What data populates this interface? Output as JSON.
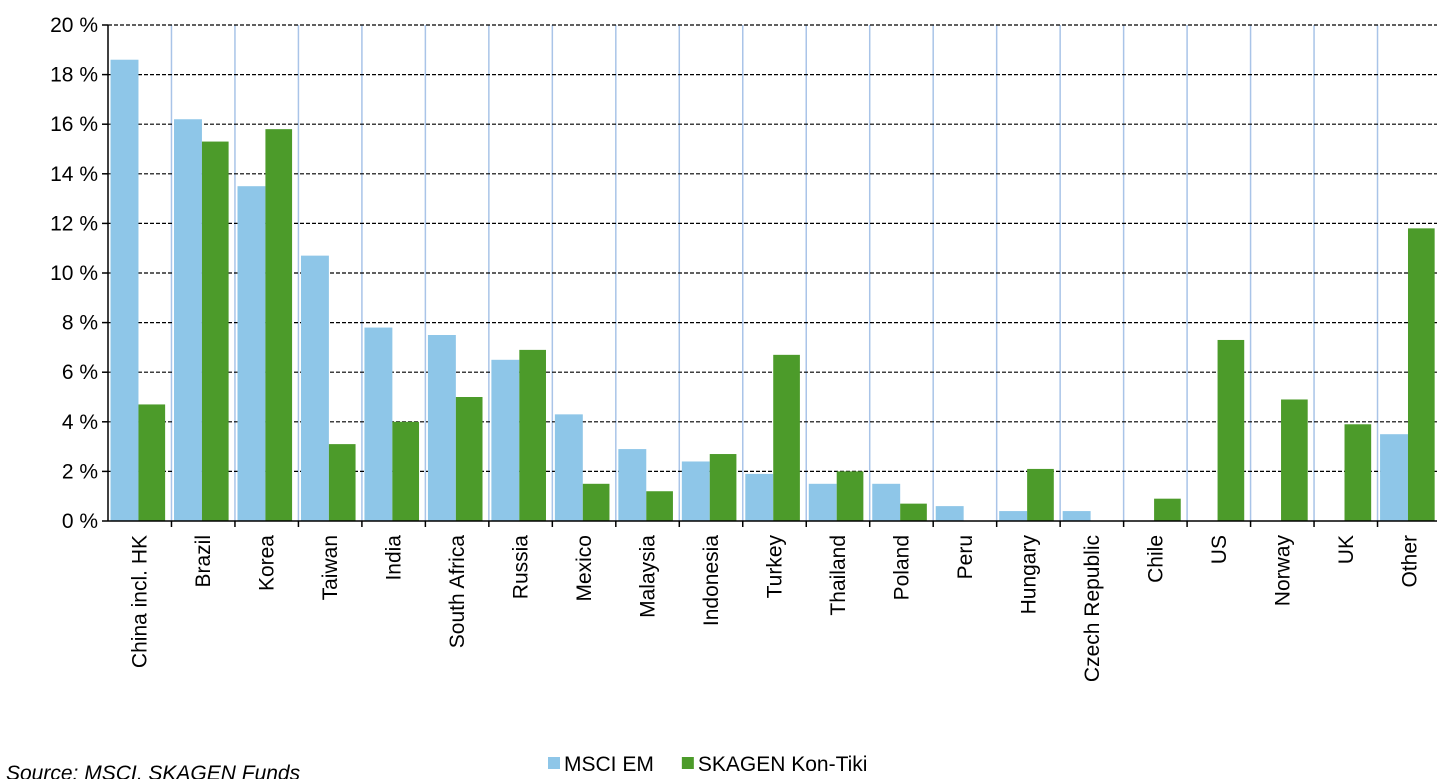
{
  "chart_data": {
    "type": "bar",
    "categories": [
      "China incl. HK",
      "Brazil",
      "Korea",
      "Taiwan",
      "India",
      "South Africa",
      "Russia",
      "Mexico",
      "Malaysia",
      "Indonesia",
      "Turkey",
      "Thailand",
      "Poland",
      "Peru",
      "Hungary",
      "Czech Republic",
      "Chile",
      "US",
      "Norway",
      "UK",
      "Other"
    ],
    "series": [
      {
        "name": "MSCI EM",
        "color": "#8ec6e8",
        "values": [
          18.6,
          16.2,
          13.5,
          10.7,
          7.8,
          7.5,
          6.5,
          4.3,
          2.9,
          2.4,
          1.9,
          1.5,
          1.5,
          0.6,
          0.4,
          0.4,
          0,
          0,
          0,
          0,
          3.5
        ]
      },
      {
        "name": "SKAGEN Kon-Tiki",
        "color": "#4c9b2a",
        "values": [
          4.7,
          15.3,
          15.8,
          3.1,
          4.0,
          5.0,
          6.9,
          1.5,
          1.2,
          2.7,
          6.7,
          2.0,
          0.7,
          0,
          2.1,
          0,
          0.9,
          7.3,
          4.9,
          3.9,
          11.8
        ]
      }
    ],
    "ylim": [
      0,
      20
    ],
    "yticks": [
      {
        "value": 0,
        "label": "0 %"
      },
      {
        "value": 2,
        "label": "2 %"
      },
      {
        "value": 4,
        "label": "4 %"
      },
      {
        "value": 6,
        "label": "6 %"
      },
      {
        "value": 8,
        "label": "8 %"
      },
      {
        "value": 10,
        "label": "10 %"
      },
      {
        "value": 12,
        "label": "12 %"
      },
      {
        "value": 14,
        "label": "14 %"
      },
      {
        "value": 16,
        "label": "16 %"
      },
      {
        "value": 18,
        "label": "18 %"
      },
      {
        "value": 20,
        "label": "20 %"
      }
    ],
    "grid": true,
    "legend": "bottom",
    "source": "Source: MSCI, SKAGEN Funds"
  }
}
